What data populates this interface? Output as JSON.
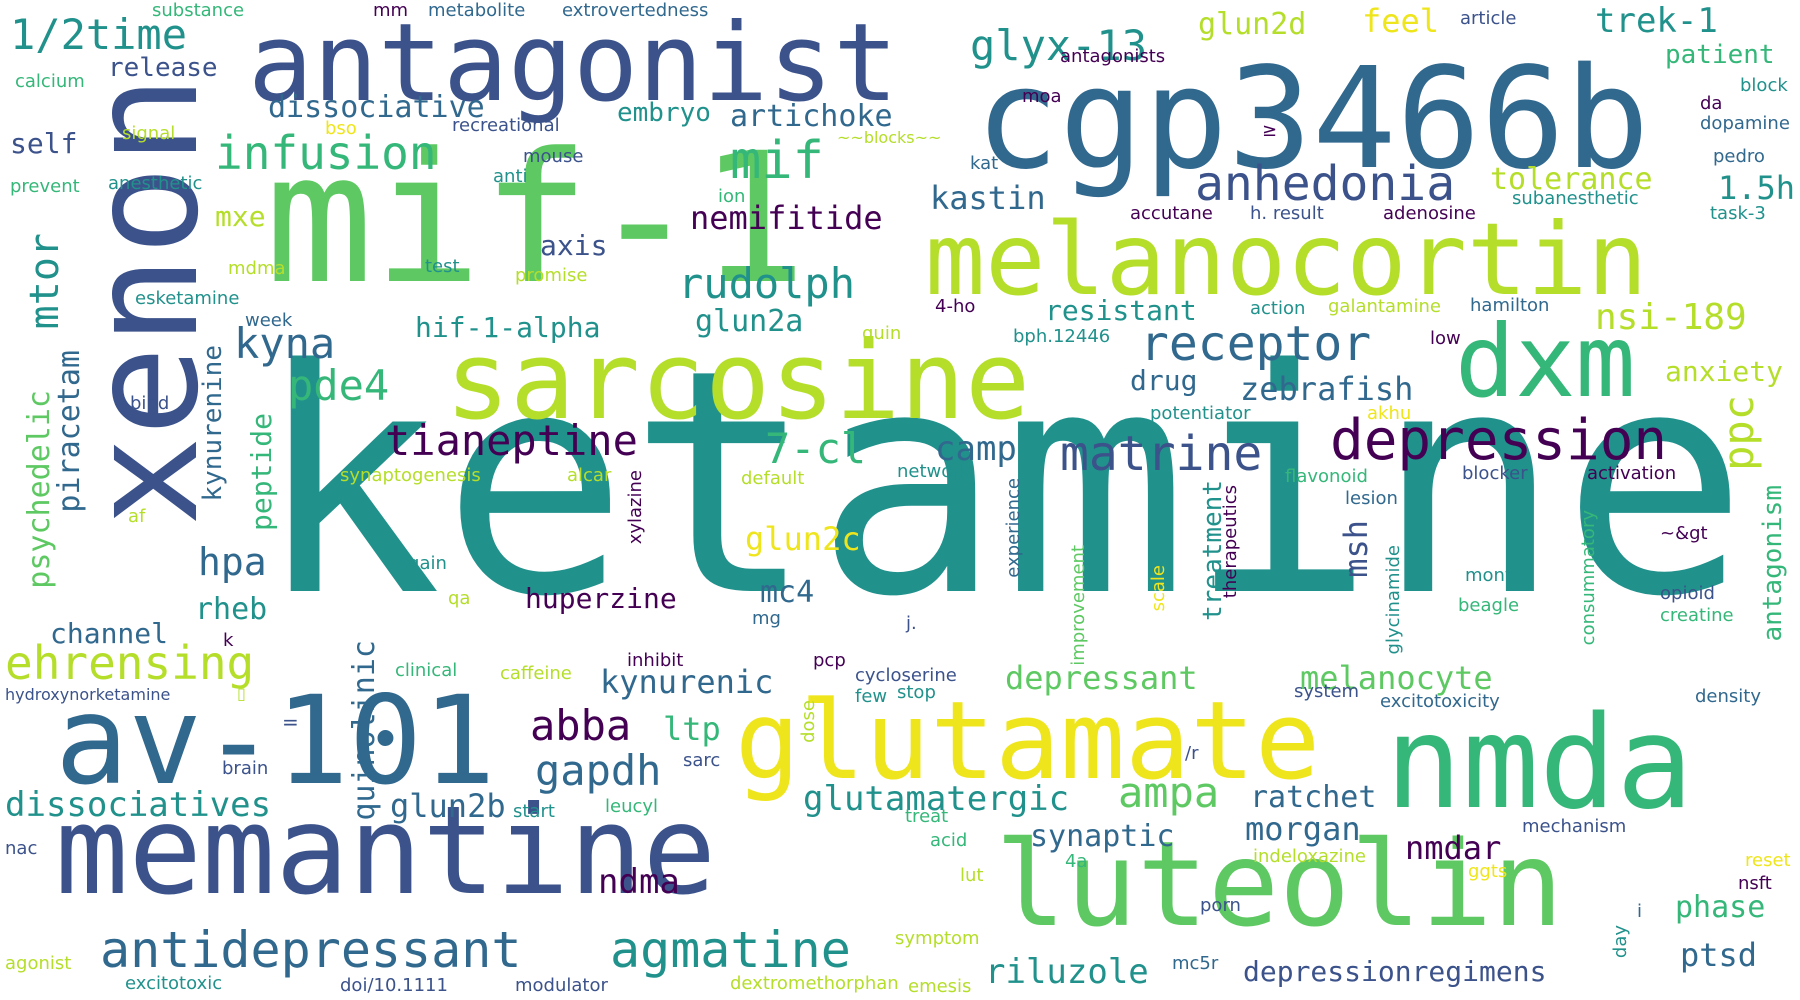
{
  "palette": {
    "purple": "#440154",
    "indigo": "#3b528b",
    "blue": "#31688e",
    "teal": "#21918c",
    "green": "#35b779",
    "lime": "#5ec962",
    "yellowgreen": "#b5de2b",
    "yellow": "#efe51c"
  },
  "words": {
    "ketamine": "ketamine",
    "mif1": "mif-1",
    "xenon": "xenon",
    "cgp3466b": "cgp3466b",
    "antagonist": "antagonist",
    "melanocortin": "melanocortin",
    "sarcosine": "sarcosine",
    "dxm": "dxm",
    "memantine": "memantine",
    "av101": "av-101",
    "glutamate": "glutamate",
    "nmda": "nmda",
    "luteolin": "luteolin",
    "depression": "depression",
    "antidepressant": "antidepressant",
    "agmatine": "agmatine",
    "infusion": "infusion",
    "mif": "mif",
    "receptor": "receptor",
    "anhedonia": "anhedonia",
    "tianeptine": "tianeptine",
    "matrine": "matrine",
    "ehrensing": "ehrensing",
    "rudolph": "rudolph",
    "glyx13": "glyx-13",
    "half_time": "1/2time",
    "kyna": "kyna",
    "pde4": "pde4",
    "7cl": "7-cl",
    "abba": "abba",
    "gapdh": "gapdh",
    "ampa": "ampa",
    "glutamatergic": "glutamatergic",
    "dissociatives": "dissociatives",
    "riluzole": "riluzole",
    "depressionregimens": "depressionregimens",
    "ptsd": "ptsd",
    "nsi189": "nsi-189",
    "dissociative": "dissociative",
    "artichoke": "artichoke",
    "embryo": "embryo",
    "release": "release",
    "self": "self",
    "mxe": "mxe",
    "mtor": "mtor",
    "psychedelic": "psychedelic",
    "piracetam": "piracetam",
    "kynurenine": "kynurenine",
    "peptide": "peptide",
    "hpa": "hpa",
    "rheb": "rheb",
    "channel": "channel",
    "quinolinic": "quinolinic",
    "glun2b": "glun2b",
    "nemifitide": "nemifitide",
    "axis": "axis",
    "hif1alpha": "hif-1-alpha",
    "glun2a": "glun2a",
    "camp": "camp",
    "glun2c": "glun2c",
    "huperzine": "huperzine",
    "mc4": "mc4",
    "kynurenic": "kynurenic",
    "ltp": "ltp",
    "ndma": "ndma",
    "synaptic": "synaptic",
    "kastin": "kastin",
    "resistant": "resistant",
    "drug": "drug",
    "zebrafish": "zebrafish",
    "depressant": "depressant",
    "melanocyte": "melanocyte",
    "ratchet": "ratchet",
    "morgan": "morgan",
    "nmdar": "nmdar",
    "treatment": "treatment",
    "msh": "msh",
    "tolerance": "tolerance",
    "1_5h": "1.5h",
    "ppc": "ppc",
    "anxiety": "anxiety",
    "antagonism": "antagonism",
    "patient": "patient",
    "trek1": "trek-1",
    "glun2d": "glun2d",
    "feel": "feel",
    "phase": "phase",
    "substance": "substance",
    "mm": "mm",
    "metabolite": "metabolite",
    "extrovertedness": "extrovertedness",
    "article": "article",
    "calcium": "calcium",
    "signal": "signal",
    "prevent": "prevent",
    "anesthetic": "anesthetic",
    "bso": "bso",
    "recreational": "recreational",
    "mouse": "mouse",
    "anti": "anti",
    "blocks": "~~blocks~~",
    "antagonists": "antagonists",
    "moa": "moa",
    "ge": "≥",
    "kat": "kat",
    "ion": "ion",
    "mdma": "mdma",
    "test": "test",
    "promise": "promise",
    "esketamine": "esketamine",
    "week": "week",
    "bind": "bind",
    "quin": "quin",
    "4ho": "4-ho",
    "action": "action",
    "galantamine": "galantamine",
    "hamilton": "hamilton",
    "bph": "bph.12446",
    "low": "low",
    "accutane": "accutane",
    "h_result": "h. result",
    "adenosine": "adenosine",
    "subanesthetic": "subanesthetic",
    "task3": "task-3",
    "block": "block",
    "da": "da",
    "dopamine": "dopamine",
    "pedro": "pedro",
    "potentiator": "potentiator",
    "akhu": "akhu",
    "synaptogenesis": "synaptogenesis",
    "alcar": "alcar",
    "default": "default",
    "network": "network",
    "flavonoid": "flavonoid",
    "blocker": "blocker",
    "activation": "activation",
    "lesion": "lesion",
    "xylazine": "xylazine",
    "experience": "experience",
    "improvement": "improvement",
    "scale": "scale",
    "therapeutics": "therapeutics",
    "glycinamide": "glycinamide",
    "consummatory": "consummatory",
    "af": "af",
    "again": "again",
    "qa": "qa",
    "month": "month",
    "beagle": "beagle",
    "opioid": "opioid",
    "creatine": "creatine",
    "gt": "~&gt",
    "k": "k",
    "mg": "mg",
    "j": "j.",
    "clinical": "clinical",
    "caffeine": "caffeine",
    "inhibit": "inhibit",
    "pcp": "pcp",
    "cycloserine": "cycloserine",
    "few": "few",
    "stop": "stop",
    "hydroxynorketamine": "hydroxynorketamine",
    "box": "▯",
    "eq": "=",
    "system": "system",
    "excitotoxicity": "excitotoxicity",
    "density": "density",
    "dose": "dose",
    "brain": "brain",
    "sarc": "sarc",
    "start": "start",
    "leucyl": "leucyl",
    "slash_r": "/r",
    "treat": "treat",
    "mechanism": "mechanism",
    "nac": "nac",
    "acid": "acid",
    "4a": "4a",
    "indeloxazine": "indeloxazine",
    "reset": "reset",
    "lut": "lut",
    "ggts": "ggts",
    "nsft": "nsft",
    "porn": "porn",
    "i": "i",
    "agonist": "agonist",
    "symptom": "symptom",
    "day": "day",
    "excitotoxic": "excitotoxic",
    "doi": "doi/10.1111",
    "modulator": "modulator",
    "dextromethorphan": "dextromethorphan",
    "emesis": "emesis",
    "mc5r": "mc5r"
  }
}
